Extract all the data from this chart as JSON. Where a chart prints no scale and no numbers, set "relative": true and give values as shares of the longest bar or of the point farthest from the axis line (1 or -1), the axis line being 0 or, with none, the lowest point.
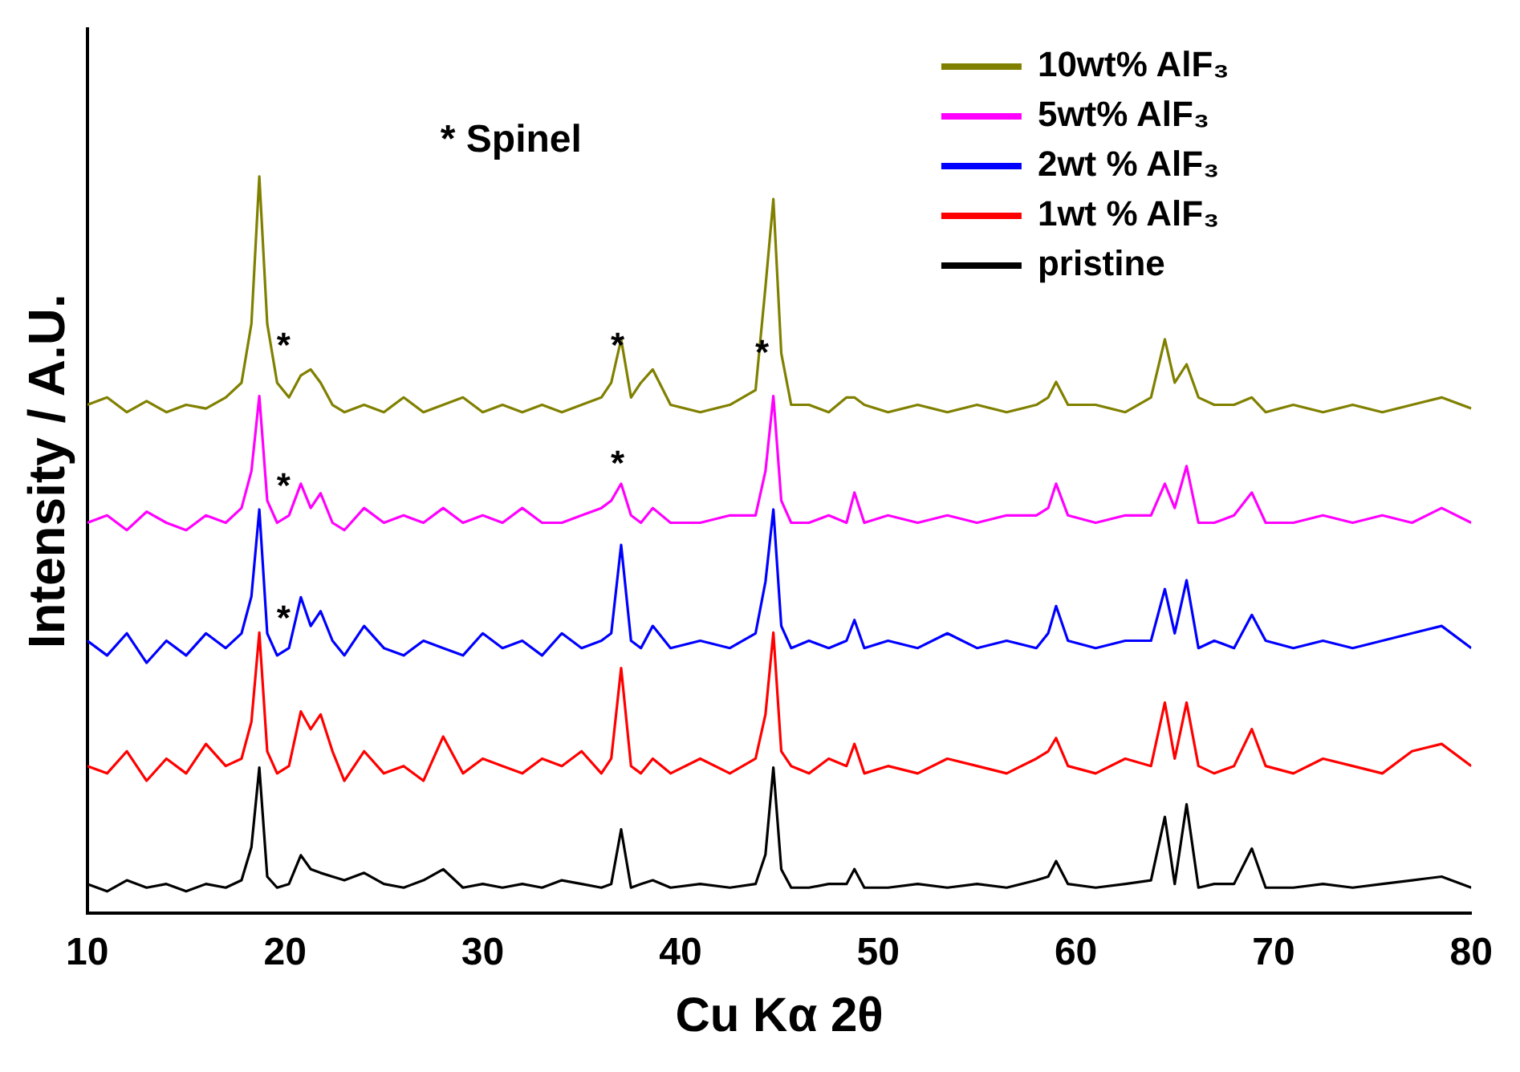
{
  "chart_data": {
    "type": "line",
    "relative": true,
    "xlabel": "Cu Kα 2θ",
    "ylabel": "Intensity / A.U.",
    "xlim": [
      10,
      80
    ],
    "xticks": [
      10,
      20,
      30,
      40,
      50,
      60,
      70,
      80
    ],
    "grid": false,
    "legend": "top right",
    "marker": "none",
    "line_style": "solid",
    "x": [
      10,
      11,
      12,
      13,
      14,
      15,
      16,
      17,
      17.8,
      18.3,
      18.7,
      19.1,
      19.6,
      20.2,
      20.8,
      21.3,
      21.8,
      22.4,
      23,
      24,
      25,
      26,
      27,
      28,
      29,
      30,
      31,
      32,
      33,
      34,
      35,
      36,
      36.5,
      37,
      37.5,
      38,
      38.6,
      39.5,
      41,
      42.5,
      43.8,
      44.3,
      44.7,
      45.1,
      45.6,
      46.5,
      47.5,
      48.4,
      48.8,
      49.3,
      50.5,
      52,
      53.5,
      55,
      56.5,
      58,
      58.6,
      59,
      59.6,
      61,
      62.5,
      63.8,
      64.5,
      65,
      65.6,
      66.2,
      67,
      68,
      68.9,
      69.6,
      71,
      72.5,
      74,
      75.5,
      77,
      78.5,
      80
    ],
    "series": [
      {
        "name": "10wt% AlF₃",
        "color": "#808000",
        "values": [
          0.69,
          0.7,
          0.68,
          0.695,
          0.68,
          0.69,
          0.685,
          0.7,
          0.72,
          0.8,
          1,
          0.8,
          0.72,
          0.7,
          0.73,
          0.738,
          0.72,
          0.69,
          0.68,
          0.69,
          0.68,
          0.7,
          0.68,
          0.69,
          0.7,
          0.68,
          0.69,
          0.68,
          0.69,
          0.68,
          0.69,
          0.7,
          0.72,
          0.779,
          0.7,
          0.72,
          0.738,
          0.69,
          0.68,
          0.69,
          0.71,
          0.85,
          0.969,
          0.76,
          0.69,
          0.69,
          0.68,
          0.7,
          0.7,
          0.69,
          0.68,
          0.69,
          0.68,
          0.69,
          0.68,
          0.69,
          0.7,
          0.721,
          0.69,
          0.69,
          0.68,
          0.7,
          0.779,
          0.72,
          0.745,
          0.7,
          0.69,
          0.69,
          0.7,
          0.68,
          0.69,
          0.68,
          0.69,
          0.68,
          0.69,
          0.7,
          0.685
        ]
      },
      {
        "name": "5wt% AlF₃",
        "color": "#ff00ff",
        "values": [
          0.53,
          0.54,
          0.52,
          0.545,
          0.53,
          0.52,
          0.54,
          0.53,
          0.55,
          0.6,
          0.702,
          0.56,
          0.53,
          0.54,
          0.583,
          0.55,
          0.57,
          0.53,
          0.52,
          0.55,
          0.53,
          0.54,
          0.53,
          0.55,
          0.53,
          0.54,
          0.53,
          0.55,
          0.53,
          0.53,
          0.54,
          0.55,
          0.56,
          0.583,
          0.54,
          0.53,
          0.55,
          0.53,
          0.53,
          0.54,
          0.54,
          0.6,
          0.702,
          0.56,
          0.53,
          0.53,
          0.54,
          0.53,
          0.571,
          0.53,
          0.54,
          0.53,
          0.54,
          0.53,
          0.54,
          0.54,
          0.55,
          0.583,
          0.54,
          0.53,
          0.54,
          0.54,
          0.583,
          0.55,
          0.607,
          0.53,
          0.53,
          0.54,
          0.571,
          0.53,
          0.53,
          0.54,
          0.53,
          0.54,
          0.53,
          0.55,
          0.53
        ]
      },
      {
        "name": "2wt % AlF₃",
        "color": "#0000ff",
        "values": [
          0.37,
          0.35,
          0.38,
          0.34,
          0.37,
          0.35,
          0.38,
          0.36,
          0.38,
          0.43,
          0.548,
          0.38,
          0.35,
          0.36,
          0.429,
          0.39,
          0.41,
          0.37,
          0.35,
          0.39,
          0.36,
          0.35,
          0.37,
          0.36,
          0.35,
          0.38,
          0.36,
          0.37,
          0.35,
          0.38,
          0.36,
          0.37,
          0.38,
          0.5,
          0.37,
          0.36,
          0.39,
          0.36,
          0.37,
          0.36,
          0.38,
          0.45,
          0.548,
          0.39,
          0.36,
          0.37,
          0.36,
          0.37,
          0.398,
          0.36,
          0.37,
          0.36,
          0.38,
          0.36,
          0.37,
          0.36,
          0.38,
          0.417,
          0.37,
          0.36,
          0.37,
          0.37,
          0.44,
          0.38,
          0.452,
          0.36,
          0.37,
          0.36,
          0.405,
          0.37,
          0.36,
          0.37,
          0.36,
          0.37,
          0.38,
          0.39,
          0.36
        ]
      },
      {
        "name": "1wt % AlF₃",
        "color": "#ff0000",
        "values": [
          0.2,
          0.19,
          0.22,
          0.18,
          0.21,
          0.19,
          0.23,
          0.2,
          0.21,
          0.26,
          0.381,
          0.22,
          0.19,
          0.2,
          0.274,
          0.25,
          0.27,
          0.22,
          0.18,
          0.22,
          0.19,
          0.2,
          0.18,
          0.24,
          0.19,
          0.21,
          0.2,
          0.19,
          0.21,
          0.2,
          0.22,
          0.19,
          0.21,
          0.333,
          0.2,
          0.19,
          0.21,
          0.19,
          0.21,
          0.19,
          0.21,
          0.27,
          0.381,
          0.22,
          0.2,
          0.19,
          0.21,
          0.2,
          0.23,
          0.19,
          0.2,
          0.19,
          0.21,
          0.2,
          0.19,
          0.21,
          0.22,
          0.238,
          0.2,
          0.19,
          0.21,
          0.2,
          0.286,
          0.21,
          0.286,
          0.2,
          0.19,
          0.2,
          0.25,
          0.2,
          0.19,
          0.21,
          0.2,
          0.19,
          0.22,
          0.23,
          0.2
        ]
      },
      {
        "name": "pristine",
        "color": "#000000",
        "values": [
          0.04,
          0.03,
          0.045,
          0.035,
          0.04,
          0.03,
          0.04,
          0.035,
          0.045,
          0.09,
          0.198,
          0.05,
          0.035,
          0.04,
          0.079,
          0.06,
          0.055,
          0.05,
          0.045,
          0.055,
          0.04,
          0.035,
          0.045,
          0.06,
          0.035,
          0.04,
          0.035,
          0.04,
          0.035,
          0.045,
          0.04,
          0.035,
          0.04,
          0.114,
          0.035,
          0.04,
          0.045,
          0.035,
          0.04,
          0.035,
          0.04,
          0.08,
          0.198,
          0.06,
          0.035,
          0.035,
          0.04,
          0.04,
          0.06,
          0.035,
          0.035,
          0.04,
          0.035,
          0.04,
          0.035,
          0.045,
          0.05,
          0.071,
          0.04,
          0.035,
          0.04,
          0.045,
          0.131,
          0.04,
          0.148,
          0.035,
          0.04,
          0.04,
          0.088,
          0.035,
          0.035,
          0.04,
          0.035,
          0.04,
          0.045,
          0.05,
          0.035
        ]
      }
    ],
    "annotations": [
      "* Spinel",
      {
        "text": "*",
        "x": 19.6,
        "y": 0.72
      },
      {
        "text": "*",
        "x": 36.5,
        "y": 0.72
      },
      {
        "text": "*",
        "x": 43.8,
        "y": 0.71
      },
      {
        "text": "*",
        "x": 19.6,
        "y": 0.53
      },
      {
        "text": "*",
        "x": 36.5,
        "y": 0.56
      },
      {
        "text": "*",
        "x": 19.6,
        "y": 0.35
      }
    ]
  }
}
